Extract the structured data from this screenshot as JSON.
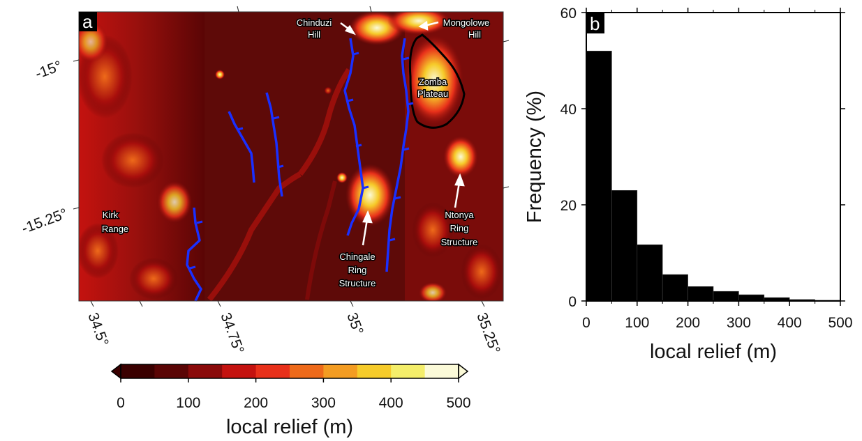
{
  "panel_a": {
    "letter": "a",
    "lat_ticks": [
      "-15°",
      "-15.25°"
    ],
    "lon_ticks": [
      "34.5°",
      "34.75°",
      "35°",
      "35.25°"
    ],
    "labels": {
      "chinduzi": [
        "Chinduzi",
        "Hill"
      ],
      "mongolowe": [
        "Mongolowe",
        "Hill"
      ],
      "zomba": [
        "Zomba",
        "Plateau"
      ],
      "kirk": [
        "Kirk",
        "Range"
      ],
      "chingale": [
        "Chingale",
        "Ring",
        "Structure"
      ],
      "ntonya": [
        "Ntonya",
        "Ring",
        "Structure"
      ]
    },
    "fault_color": "#1a2fff",
    "plateau_outline_color": "#000000"
  },
  "colorbar": {
    "ticks": [
      "0",
      "100",
      "200",
      "300",
      "400",
      "500"
    ],
    "label": "local relief (m)",
    "colors": [
      "#3a0000",
      "#5a0505",
      "#8a0a0a",
      "#c4120f",
      "#e8301a",
      "#ee6a1a",
      "#f39c22",
      "#f6cb2a",
      "#f4ee6a",
      "#fbfad8"
    ]
  },
  "chart_data": {
    "type": "bar",
    "panel": "b",
    "bins": [
      [
        0,
        50
      ],
      [
        50,
        100
      ],
      [
        100,
        150
      ],
      [
        150,
        200
      ],
      [
        200,
        250
      ],
      [
        250,
        300
      ],
      [
        300,
        350
      ],
      [
        350,
        400
      ],
      [
        400,
        450
      ],
      [
        450,
        500
      ]
    ],
    "values": [
      52,
      23,
      11.7,
      5.5,
      3,
      2,
      1.3,
      0.7,
      0.3,
      0.15
    ],
    "xlabel": "local relief (m)",
    "ylabel": "Frequency (%)",
    "xlim": [
      0,
      500
    ],
    "ylim": [
      0,
      60
    ],
    "x_ticks": [
      "0",
      "100",
      "200",
      "300",
      "400",
      "500"
    ],
    "y_ticks": [
      "0",
      "20",
      "40",
      "60"
    ],
    "bar_color": "#000000",
    "grid": false
  }
}
